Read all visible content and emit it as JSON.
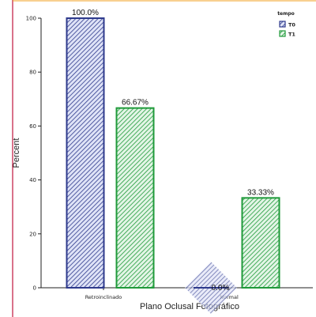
{
  "chart_data": {
    "type": "bar",
    "xlabel": "Plano Oclusal Fotográfico",
    "ylabel": "Percent",
    "ylim": [
      0,
      100
    ],
    "yticks": [
      0,
      20,
      40,
      60,
      80,
      100
    ],
    "categories": [
      "Retroinclinado",
      "Normal"
    ],
    "legend": {
      "title": "tempo",
      "placement": "top-right"
    },
    "series": [
      {
        "name": "T0",
        "values": [
          100.0,
          0.0
        ],
        "labels": [
          "100.0%",
          "0.0%"
        ],
        "color": "#2e3a8c"
      },
      {
        "name": "T1",
        "values": [
          66.67,
          33.33
        ],
        "labels": [
          "66.67%",
          "33.33%"
        ],
        "color": "#1f9a3a"
      }
    ],
    "grid": false
  }
}
